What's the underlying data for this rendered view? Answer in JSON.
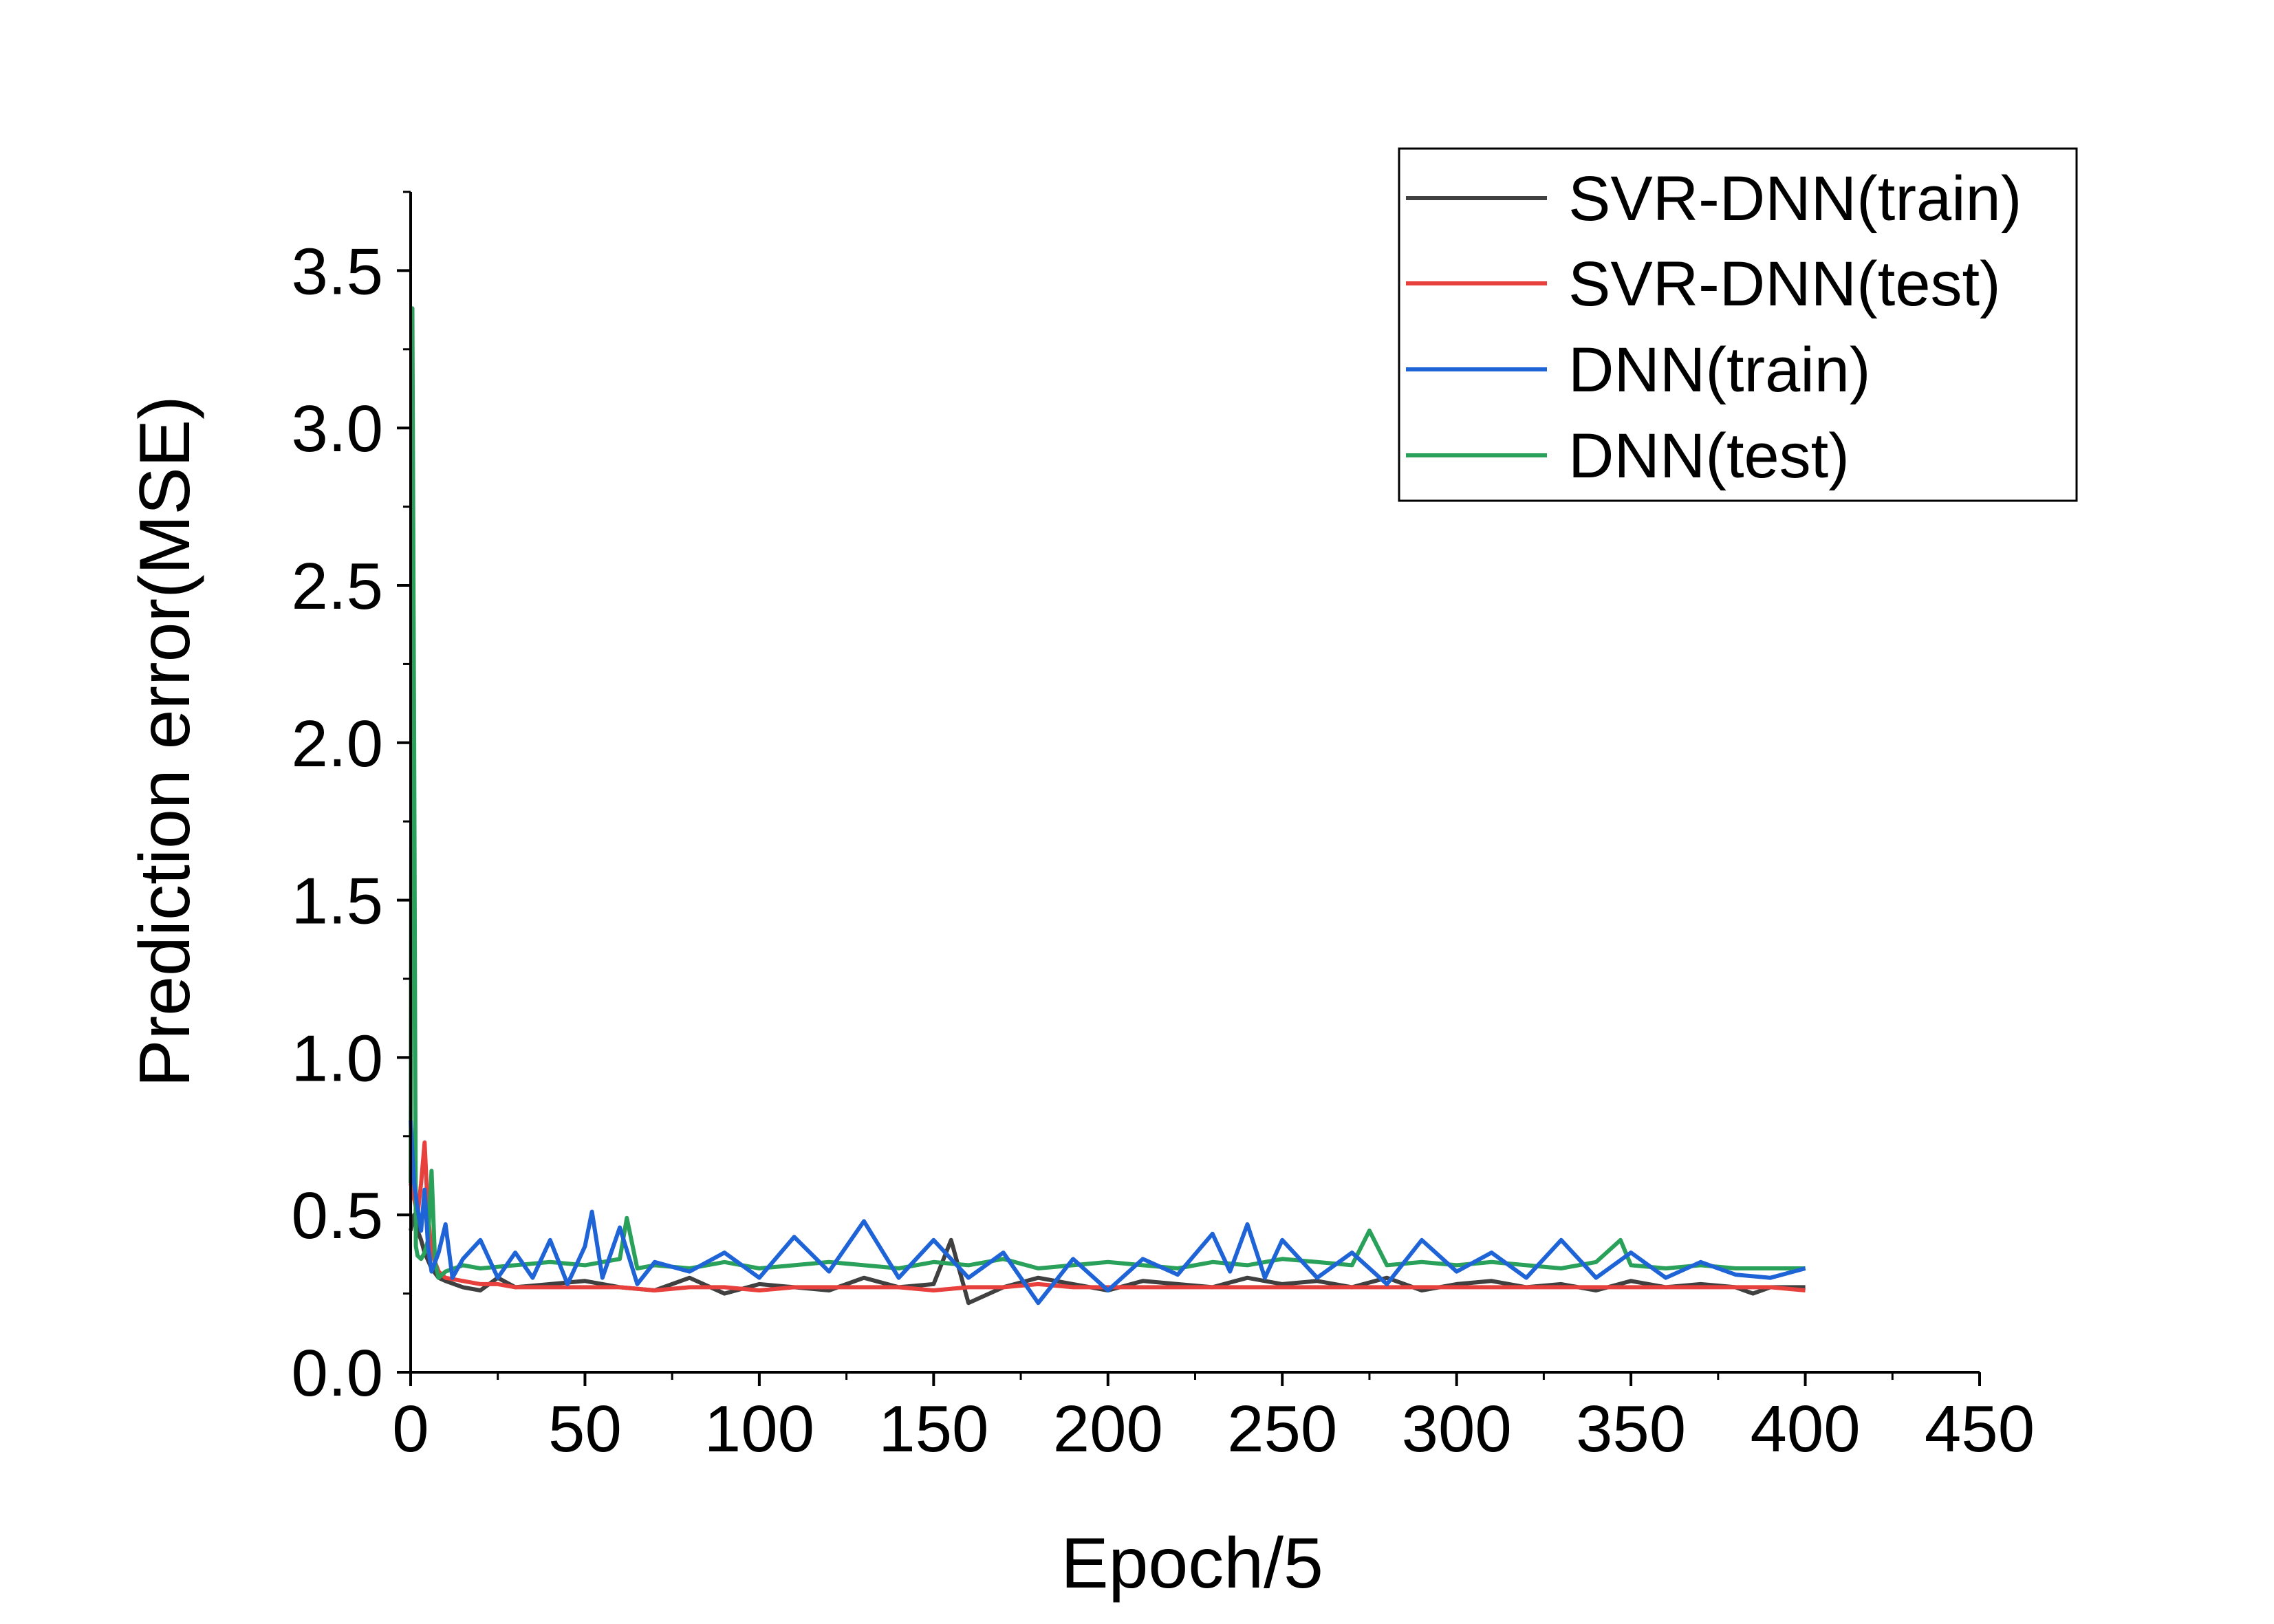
{
  "chart_data": {
    "type": "line",
    "title": "",
    "xlabel": "Epoch/5",
    "ylabel": "Prediction error(MSE)",
    "xlim": [
      0,
      450
    ],
    "ylim": [
      0,
      3.75
    ],
    "x_ticks": [
      "0",
      "50",
      "100",
      "150",
      "200",
      "250",
      "300",
      "350",
      "400",
      "450"
    ],
    "y_ticks": [
      "0.0",
      "0.5",
      "1.0",
      "1.5",
      "2.0",
      "2.5",
      "3.0",
      "3.5"
    ],
    "grid": false,
    "legend_position": "top-right",
    "series": [
      {
        "name": "SVR-DNN(train)",
        "color": "#404040",
        "x": [
          0,
          1,
          2,
          3,
          4,
          6,
          8,
          10,
          15,
          20,
          25,
          30,
          40,
          50,
          60,
          70,
          80,
          90,
          100,
          110,
          120,
          130,
          140,
          150,
          155,
          160,
          170,
          180,
          190,
          200,
          210,
          220,
          230,
          240,
          250,
          260,
          270,
          280,
          290,
          300,
          310,
          320,
          330,
          340,
          350,
          360,
          370,
          380,
          385,
          390,
          400
        ],
        "y": [
          0.45,
          0.5,
          0.45,
          0.42,
          0.38,
          0.33,
          0.3,
          0.29,
          0.27,
          0.26,
          0.3,
          0.27,
          0.28,
          0.29,
          0.27,
          0.26,
          0.3,
          0.25,
          0.28,
          0.27,
          0.26,
          0.3,
          0.27,
          0.28,
          0.42,
          0.22,
          0.27,
          0.3,
          0.28,
          0.26,
          0.29,
          0.28,
          0.27,
          0.3,
          0.28,
          0.29,
          0.27,
          0.3,
          0.26,
          0.28,
          0.29,
          0.27,
          0.28,
          0.26,
          0.29,
          0.27,
          0.28,
          0.27,
          0.25,
          0.27,
          0.27
        ]
      },
      {
        "name": "SVR-DNN(test)",
        "color": "#e8403d",
        "x": [
          0,
          1,
          2,
          3,
          4,
          5,
          6,
          8,
          10,
          15,
          20,
          25,
          30,
          40,
          50,
          60,
          70,
          80,
          90,
          100,
          110,
          120,
          130,
          140,
          150,
          160,
          170,
          180,
          190,
          200,
          210,
          220,
          230,
          240,
          250,
          260,
          270,
          280,
          290,
          300,
          310,
          320,
          330,
          340,
          350,
          360,
          370,
          380,
          390,
          400
        ],
        "y": [
          0.6,
          0.55,
          0.5,
          0.6,
          0.73,
          0.5,
          0.38,
          0.32,
          0.3,
          0.29,
          0.28,
          0.28,
          0.27,
          0.27,
          0.27,
          0.27,
          0.26,
          0.27,
          0.27,
          0.26,
          0.27,
          0.27,
          0.27,
          0.27,
          0.26,
          0.27,
          0.27,
          0.28,
          0.27,
          0.27,
          0.27,
          0.27,
          0.27,
          0.27,
          0.27,
          0.27,
          0.27,
          0.27,
          0.27,
          0.27,
          0.27,
          0.27,
          0.27,
          0.27,
          0.27,
          0.27,
          0.27,
          0.27,
          0.27,
          0.26
        ]
      },
      {
        "name": "DNN(train)",
        "color": "#1f64d6",
        "x": [
          0,
          1,
          2,
          3,
          4,
          5,
          6,
          8,
          10,
          12,
          15,
          20,
          25,
          30,
          35,
          40,
          45,
          50,
          52,
          55,
          60,
          65,
          70,
          80,
          90,
          100,
          110,
          120,
          130,
          140,
          150,
          160,
          170,
          180,
          190,
          200,
          210,
          220,
          230,
          235,
          240,
          245,
          250,
          260,
          270,
          280,
          290,
          300,
          310,
          320,
          330,
          340,
          350,
          360,
          370,
          380,
          390,
          400
        ],
        "y": [
          0.8,
          0.6,
          0.52,
          0.45,
          0.58,
          0.4,
          0.32,
          0.38,
          0.47,
          0.3,
          0.36,
          0.42,
          0.3,
          0.38,
          0.3,
          0.42,
          0.28,
          0.4,
          0.51,
          0.3,
          0.46,
          0.28,
          0.35,
          0.32,
          0.38,
          0.3,
          0.43,
          0.32,
          0.48,
          0.3,
          0.42,
          0.3,
          0.38,
          0.22,
          0.36,
          0.26,
          0.36,
          0.31,
          0.44,
          0.32,
          0.47,
          0.3,
          0.42,
          0.3,
          0.38,
          0.28,
          0.42,
          0.32,
          0.38,
          0.3,
          0.42,
          0.3,
          0.38,
          0.3,
          0.35,
          0.31,
          0.3,
          0.33
        ]
      },
      {
        "name": "DNN(test)",
        "color": "#2aa15a",
        "x": [
          0,
          0.5,
          1,
          1.5,
          2,
          3,
          4,
          5,
          6,
          7,
          8,
          10,
          15,
          20,
          30,
          40,
          50,
          60,
          62,
          65,
          70,
          80,
          90,
          100,
          110,
          120,
          130,
          140,
          150,
          160,
          170,
          180,
          190,
          200,
          210,
          220,
          230,
          240,
          250,
          260,
          270,
          275,
          280,
          290,
          300,
          310,
          320,
          330,
          340,
          347,
          350,
          360,
          370,
          380,
          390,
          400
        ],
        "y": [
          0.6,
          3.38,
          2.0,
          0.4,
          0.37,
          0.36,
          0.38,
          0.42,
          0.64,
          0.35,
          0.3,
          0.32,
          0.34,
          0.33,
          0.34,
          0.35,
          0.34,
          0.36,
          0.49,
          0.33,
          0.34,
          0.33,
          0.35,
          0.33,
          0.34,
          0.35,
          0.34,
          0.33,
          0.35,
          0.34,
          0.36,
          0.33,
          0.34,
          0.35,
          0.34,
          0.33,
          0.35,
          0.34,
          0.36,
          0.35,
          0.34,
          0.45,
          0.34,
          0.35,
          0.34,
          0.35,
          0.34,
          0.33,
          0.35,
          0.42,
          0.34,
          0.33,
          0.34,
          0.33,
          0.33,
          0.33
        ]
      }
    ]
  }
}
